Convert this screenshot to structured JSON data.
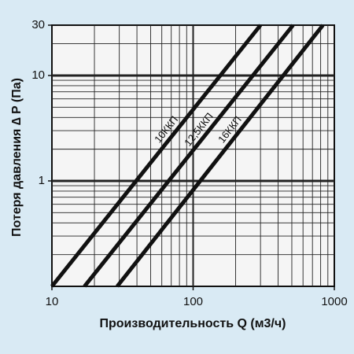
{
  "chart_data": {
    "type": "line",
    "x_label": "Производительность Q (м3/ч)",
    "y_label": "Потеря давления ∆ P (Па)",
    "xlim": [
      10,
      1000
    ],
    "ylim": [
      0.1,
      30
    ],
    "xticks": [
      10,
      100,
      1000
    ],
    "yticks": [
      1,
      10,
      30
    ],
    "xscale": "log",
    "yscale": "log",
    "grid": true,
    "series": [
      {
        "name": "10ККП",
        "color": "#111111",
        "x": [
          10,
          300
        ],
        "values": [
          0.1,
          30
        ]
      },
      {
        "name": "12,5ККП",
        "color": "#111111",
        "x": [
          17,
          510
        ],
        "values": [
          0.1,
          30
        ]
      },
      {
        "name": "16ККП",
        "color": "#111111",
        "x": [
          29,
          830
        ],
        "values": [
          0.1,
          30
        ]
      }
    ]
  }
}
